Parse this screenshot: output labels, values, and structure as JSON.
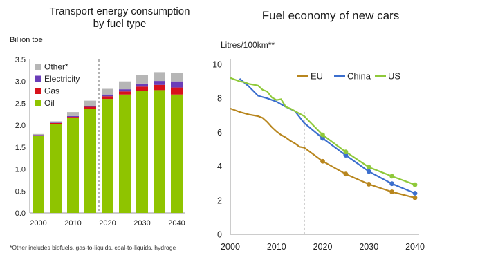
{
  "chart_data": [
    {
      "type": "bar",
      "stacked": true,
      "title_lines": [
        "Transport energy consumption",
        "by fuel type"
      ],
      "ylabel": "Billion toe",
      "ylim": [
        0,
        3.5
      ],
      "yticks": [
        "0.0",
        "0.5",
        "1.0",
        "1.5",
        "2.0",
        "2.5",
        "3.0",
        "3.5"
      ],
      "categories": [
        2000,
        2005,
        2010,
        2015,
        2020,
        2025,
        2030,
        2035,
        2040
      ],
      "x_tick_labels": [
        "2000",
        "2010",
        "2020",
        "2030",
        "2040"
      ],
      "x_tick_categories": [
        2000,
        2010,
        2020,
        2030,
        2040
      ],
      "divider_after_category": 2015,
      "series": [
        {
          "name": "Oil",
          "color": "#8fc400",
          "values": [
            1.76,
            2.03,
            2.16,
            2.38,
            2.6,
            2.7,
            2.78,
            2.8,
            2.7
          ]
        },
        {
          "name": "Gas",
          "color": "#d8121b",
          "values": [
            0.01,
            0.02,
            0.03,
            0.04,
            0.06,
            0.07,
            0.1,
            0.12,
            0.16
          ]
        },
        {
          "name": "Electricity",
          "color": "#6a3db8",
          "values": [
            0.01,
            0.01,
            0.02,
            0.02,
            0.04,
            0.05,
            0.07,
            0.09,
            0.14
          ]
        },
        {
          "name": "Other*",
          "color": "#b6b6b6",
          "values": [
            0.02,
            0.03,
            0.09,
            0.12,
            0.13,
            0.18,
            0.19,
            0.2,
            0.2
          ]
        }
      ],
      "legend_order": [
        "Other*",
        "Electricity",
        "Gas",
        "Oil"
      ],
      "legend_position": "top-left",
      "footnote": "*Other includes biofuels, gas-to-liquids, coal-to-liquids, hydroge"
    },
    {
      "type": "line",
      "title": "Fuel economy of new cars",
      "ylabel": "Litres/100km**",
      "ylim": [
        0,
        10
      ],
      "yticks": [
        "0",
        "2",
        "4",
        "6",
        "8",
        "10"
      ],
      "xlim": [
        2000,
        2040
      ],
      "xticks": [
        "2000",
        "2010",
        "2020",
        "2030",
        "2040"
      ],
      "divider_x": 2016,
      "legend_position": "top-right",
      "series": [
        {
          "name": "EU",
          "color": "#b8861e",
          "x": [
            2000,
            2002,
            2004,
            2006,
            2007,
            2008,
            2009,
            2010,
            2011,
            2012,
            2013,
            2014,
            2015,
            2016,
            2020,
            2025,
            2030,
            2035,
            2040
          ],
          "y": [
            7.4,
            7.2,
            7.05,
            6.95,
            6.85,
            6.6,
            6.3,
            6.05,
            5.85,
            5.7,
            5.5,
            5.35,
            5.15,
            5.1,
            4.3,
            3.55,
            2.95,
            2.5,
            2.15
          ],
          "markers_from": 2020
        },
        {
          "name": "China",
          "color": "#3c6fce",
          "x": [
            2002,
            2004,
            2006,
            2008,
            2010,
            2012,
            2014,
            2016,
            2020,
            2025,
            2030,
            2035,
            2040
          ],
          "y": [
            9.15,
            8.7,
            8.15,
            8.0,
            7.8,
            7.5,
            7.25,
            6.55,
            5.65,
            4.65,
            3.7,
            2.98,
            2.42
          ],
          "markers_from": 2020
        },
        {
          "name": "US",
          "color": "#8fc93a",
          "x": [
            2000,
            2002,
            2003,
            2004,
            2005,
            2006,
            2007,
            2008,
            2009,
            2010,
            2011,
            2012,
            2013,
            2014,
            2016,
            2020,
            2025,
            2030,
            2035,
            2040
          ],
          "y": [
            9.2,
            9.0,
            8.95,
            8.85,
            8.8,
            8.75,
            8.5,
            8.4,
            8.05,
            7.9,
            7.95,
            7.5,
            7.4,
            7.25,
            6.95,
            5.85,
            4.85,
            3.95,
            3.42,
            2.92
          ],
          "markers_from": 2020
        }
      ]
    }
  ]
}
